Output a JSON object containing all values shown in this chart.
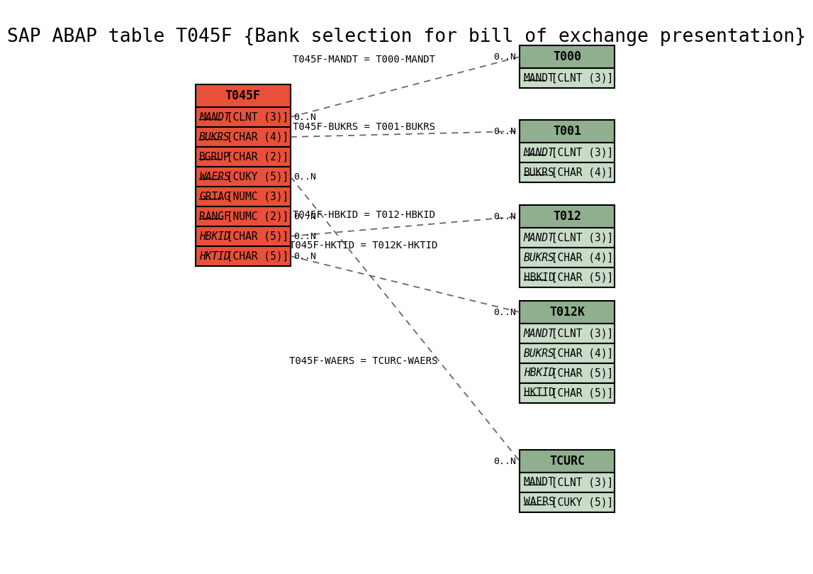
{
  "title": "SAP ABAP table T045F {Bank selection for bill of exchange presentation}",
  "title_fontsize": 20,
  "background_color": "#ffffff",
  "main_table": {
    "name": "T045F",
    "header_color": "#e8503a",
    "row_color": "#e8503a",
    "border_color": "#000000",
    "fields": [
      {
        "name": "MANDT",
        "type": "[CLNT (3)]",
        "italic": true,
        "underline": true
      },
      {
        "name": "BUKRS",
        "type": "[CHAR (4)]",
        "italic": true,
        "underline": true
      },
      {
        "name": "BGRUP",
        "type": "[CHAR (2)]",
        "italic": false,
        "underline": true
      },
      {
        "name": "WAERS",
        "type": "[CUKY (5)]",
        "italic": true,
        "underline": true
      },
      {
        "name": "GRTAG",
        "type": "[NUMC (3)]",
        "italic": false,
        "underline": true
      },
      {
        "name": "RANGF",
        "type": "[NUMC (2)]",
        "italic": false,
        "underline": true
      },
      {
        "name": "HBKID",
        "type": "[CHAR (5)]",
        "italic": true,
        "underline": false
      },
      {
        "name": "HKTID",
        "type": "[CHAR (5)]",
        "italic": true,
        "underline": false
      }
    ]
  },
  "ref_tables": [
    {
      "name": "T000",
      "header_color": "#8faf8f",
      "row_color": "#c8dcc8",
      "border_color": "#000000",
      "fields": [
        {
          "name": "MANDT",
          "type": "[CLNT (3)]",
          "italic": false,
          "underline": true
        }
      ]
    },
    {
      "name": "T001",
      "header_color": "#8faf8f",
      "row_color": "#c8dcc8",
      "border_color": "#000000",
      "fields": [
        {
          "name": "MANDT",
          "type": "[CLNT (3)]",
          "italic": true,
          "underline": true
        },
        {
          "name": "BUKRS",
          "type": "[CHAR (4)]",
          "italic": false,
          "underline": true
        }
      ]
    },
    {
      "name": "T012",
      "header_color": "#8faf8f",
      "row_color": "#c8dcc8",
      "border_color": "#000000",
      "fields": [
        {
          "name": "MANDT",
          "type": "[CLNT (3)]",
          "italic": true,
          "underline": false
        },
        {
          "name": "BUKRS",
          "type": "[CHAR (4)]",
          "italic": true,
          "underline": false
        },
        {
          "name": "HBKID",
          "type": "[CHAR (5)]",
          "italic": false,
          "underline": true
        }
      ]
    },
    {
      "name": "T012K",
      "header_color": "#8faf8f",
      "row_color": "#c8dcc8",
      "border_color": "#000000",
      "fields": [
        {
          "name": "MANDT",
          "type": "[CLNT (3)]",
          "italic": true,
          "underline": false
        },
        {
          "name": "BUKRS",
          "type": "[CHAR (4)]",
          "italic": true,
          "underline": false
        },
        {
          "name": "HBKID",
          "type": "[CHAR (5)]",
          "italic": true,
          "underline": false
        },
        {
          "name": "HKTID",
          "type": "[CHAR (5)]",
          "italic": false,
          "underline": true
        }
      ]
    },
    {
      "name": "TCURC",
      "header_color": "#8faf8f",
      "row_color": "#c8dcc8",
      "border_color": "#000000",
      "fields": [
        {
          "name": "MANDT",
          "type": "[CLNT (3)]",
          "italic": false,
          "underline": true
        },
        {
          "name": "WAERS",
          "type": "[CUKY (5)]",
          "italic": false,
          "underline": true
        }
      ]
    }
  ],
  "relationships": [
    {
      "label": "T045F-MANDT = T000-MANDT",
      "from_row": 0,
      "to_ref": 0,
      "right_card": "0..N",
      "left_card": "0..N"
    },
    {
      "label": "T045F-BUKRS = T001-BUKRS",
      "from_row": 1,
      "to_ref": 1,
      "right_card": "0..N",
      "left_card": "0..N"
    },
    {
      "label": "T045F-HBKID = T012-HBKID",
      "from_row": 6,
      "to_ref": 2,
      "right_card": "0..N",
      "left_card": "0..N"
    },
    {
      "label": "T045F-HKTID = T012K-HKTID",
      "from_row": 7,
      "to_ref": 3,
      "right_card": "0..N",
      "left_card": "0..N"
    },
    {
      "label": "T045F-WAERS = TCURC-WAERS",
      "from_row": 3,
      "to_ref": 4,
      "right_card": "0..N",
      "left_card": "0..N"
    }
  ],
  "right_labels": [
    {
      "row": 0,
      "text": "0..N"
    },
    {
      "row": 3,
      "text": "0..N"
    },
    {
      "row": 5,
      "text": "0..N"
    },
    {
      "row": 6,
      "text": "0.:N"
    },
    {
      "row": 7,
      "text": "0..N"
    }
  ]
}
